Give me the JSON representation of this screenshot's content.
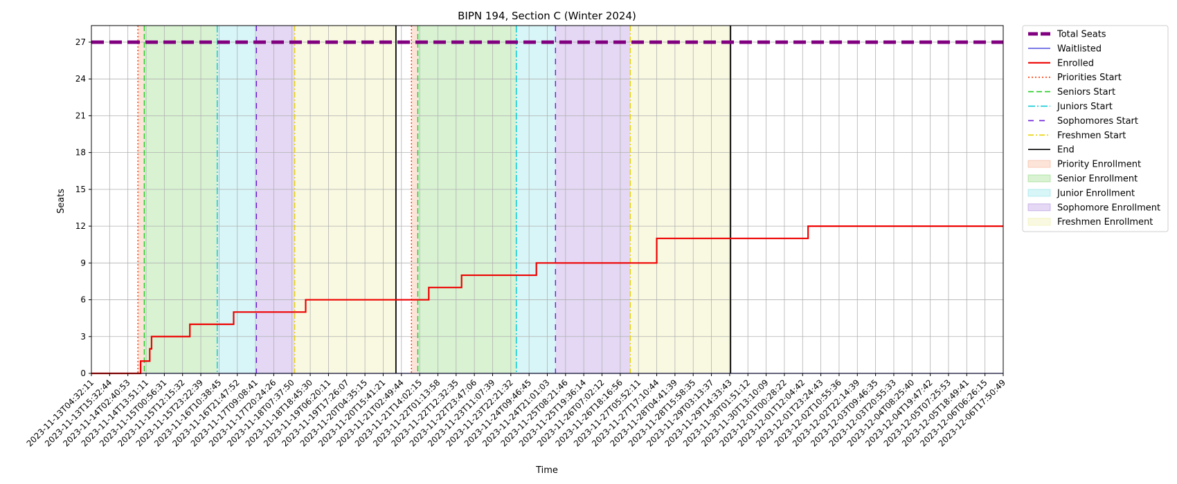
{
  "chart_data": {
    "type": "line",
    "title": "BIPN 194, Section C (Winter 2024)",
    "xlabel": "Time",
    "ylabel": "Seats",
    "ylim": [
      0,
      28.35
    ],
    "yticks": [
      0,
      3,
      6,
      9,
      12,
      15,
      18,
      21,
      24,
      27
    ],
    "grid": true,
    "legend_position": "outside-top-right",
    "x_tick_labels": [
      "2023-11-13T04:32:11",
      "2023-11-13T15:32:44",
      "2023-11-14T02:40:53",
      "2023-11-14T13:51:11",
      "2023-11-15T00:56:31",
      "2023-11-15T12:15:32",
      "2023-11-15T23:22:39",
      "2023-11-16T10:38:45",
      "2023-11-16T21:47:52",
      "2023-11-17T09:08:41",
      "2023-11-17T20:24:26",
      "2023-11-18T07:37:50",
      "2023-11-18T18:45:30",
      "2023-11-19T06:20:11",
      "2023-11-19T17:26:07",
      "2023-11-20T04:35:15",
      "2023-11-20T15:41:21",
      "2023-11-21T02:49:44",
      "2023-11-21T14:02:15",
      "2023-11-22T01:13:58",
      "2023-11-22T12:32:35",
      "2023-11-22T23:47:06",
      "2023-11-23T11:07:39",
      "2023-11-23T22:21:32",
      "2023-11-24T09:46:45",
      "2023-11-24T21:01:03",
      "2023-11-25T08:21:46",
      "2023-11-25T19:36:14",
      "2023-11-26T07:02:12",
      "2023-11-26T18:16:56",
      "2023-11-27T05:52:11",
      "2023-11-27T17:10:44",
      "2023-11-28T04:41:39",
      "2023-11-28T15:58:35",
      "2023-11-29T03:13:37",
      "2023-11-29T14:33:43",
      "2023-11-30T01:51:12",
      "2023-11-30T13:10:09",
      "2023-12-01T00:28:22",
      "2023-12-01T12:04:42",
      "2023-12-01T23:24:43",
      "2023-12-02T10:55:36",
      "2023-12-02T22:14:39",
      "2023-12-03T09:46:35",
      "2023-12-03T20:55:33",
      "2023-12-04T08:25:40",
      "2023-12-04T19:47:42",
      "2023-12-05T07:25:53",
      "2023-12-05T18:49:41",
      "2023-12-06T06:26:15",
      "2023-12-06T17:50:49"
    ],
    "x_range_ticks": [
      0,
      50
    ],
    "regions": [
      {
        "name": "Priority Enrollment",
        "from": 2.55,
        "to": 2.9,
        "color": "#f4a582"
      },
      {
        "name": "Senior Enrollment",
        "from": 2.9,
        "to": 6.9,
        "color": "#7fd46b"
      },
      {
        "name": "Junior Enrollment",
        "from": 6.9,
        "to": 9.05,
        "color": "#7fdde4"
      },
      {
        "name": "Sophomore Enrollment",
        "from": 9.05,
        "to": 11.15,
        "color": "#a77fdc"
      },
      {
        "name": "Freshmen Enrollment",
        "from": 11.15,
        "to": 16.7,
        "color": "#ecec9a"
      },
      {
        "name": "Priority Enrollment",
        "from": 17.55,
        "to": 17.9,
        "color": "#f4a582"
      },
      {
        "name": "Senior Enrollment",
        "from": 17.9,
        "to": 23.3,
        "color": "#7fd46b"
      },
      {
        "name": "Junior Enrollment",
        "from": 23.3,
        "to": 25.45,
        "color": "#7fdde4"
      },
      {
        "name": "Sophomore Enrollment",
        "from": 25.45,
        "to": 29.55,
        "color": "#a77fdc"
      },
      {
        "name": "Freshmen Enrollment",
        "from": 29.55,
        "to": 35.05,
        "color": "#ecec9a"
      }
    ],
    "event_lines": [
      {
        "name": "Priorities Start",
        "x": [
          2.55,
          17.55
        ],
        "color": "#ff3300",
        "dash": "2,3"
      },
      {
        "name": "Seniors Start",
        "x": [
          2.9,
          17.9
        ],
        "color": "#22cc22",
        "dash": "8,4"
      },
      {
        "name": "Juniors Start",
        "x": [
          6.9,
          23.3
        ],
        "color": "#00c8d4",
        "dash": "10,3,2,3"
      },
      {
        "name": "Sophomores Start",
        "x": [
          9.05,
          25.45
        ],
        "color": "#6a1bd8",
        "dash": "8,8"
      },
      {
        "name": "Freshmen Start",
        "x": [
          11.15,
          29.55
        ],
        "color": "#e8d200",
        "dash": "8,3,2,3"
      },
      {
        "name": "End",
        "x": [
          16.7,
          35.05
        ],
        "color": "#000000",
        "dash": ""
      }
    ],
    "series": [
      {
        "name": "Total Seats",
        "color": "#800080",
        "x": [
          0,
          50
        ],
        "y": [
          27,
          27
        ]
      },
      {
        "name": "Waitlisted",
        "color": "#2b2bd9",
        "x": [
          0,
          50
        ],
        "y": [
          0,
          0
        ]
      },
      {
        "name": "Enrolled",
        "color": "#ee0000",
        "step": true,
        "x": [
          0,
          2.7,
          3.2,
          3.3,
          3.4,
          5.4,
          7.8,
          11.75,
          18.5,
          20.3,
          24.4,
          31.0,
          39.3,
          50
        ],
        "y": [
          0,
          1,
          2,
          3,
          3,
          4,
          5,
          6,
          7,
          8,
          9,
          11,
          12,
          12
        ]
      }
    ],
    "legend": [
      "Total Seats",
      "Waitlisted",
      "Enrolled",
      "Priorities Start",
      "Seniors Start",
      "Juniors Start",
      "Sophomores Start",
      "Freshmen Start",
      "End",
      "Priority Enrollment",
      "Senior Enrollment",
      "Junior Enrollment",
      "Sophomore Enrollment",
      "Freshmen Enrollment"
    ]
  }
}
